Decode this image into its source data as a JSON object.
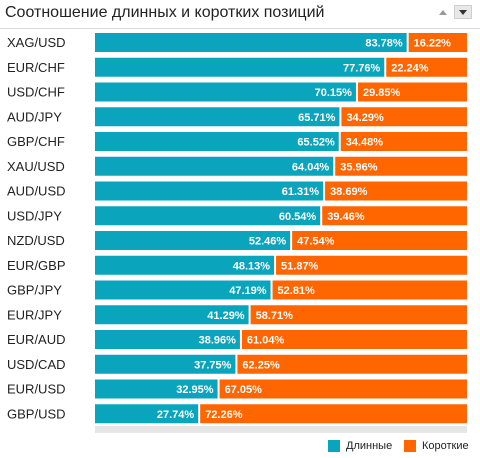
{
  "header": {
    "title": "Соотношение длинных и коротких позиций"
  },
  "colors": {
    "long": "#0aa5bd",
    "short": "#ff6600",
    "track": "#e6e6e6"
  },
  "legend": {
    "long_label": "Длинные",
    "short_label": "Короткие"
  },
  "chart_data": {
    "type": "bar",
    "orientation": "horizontal",
    "stacked": true,
    "categories": [
      "XAG/USD",
      "EUR/CHF",
      "USD/CHF",
      "AUD/JPY",
      "GBP/CHF",
      "XAU/USD",
      "AUD/USD",
      "USD/JPY",
      "NZD/USD",
      "EUR/GBP",
      "GBP/JPY",
      "EUR/JPY",
      "EUR/AUD",
      "USD/CAD",
      "EUR/USD",
      "GBP/USD"
    ],
    "series": [
      {
        "name": "Длинные",
        "values": [
          83.78,
          77.76,
          70.15,
          65.71,
          65.52,
          64.04,
          61.31,
          60.54,
          52.46,
          48.13,
          47.19,
          41.29,
          38.96,
          37.75,
          32.95,
          27.74
        ]
      },
      {
        "name": "Короткие",
        "values": [
          16.22,
          22.24,
          29.85,
          34.29,
          34.48,
          35.96,
          38.69,
          39.46,
          47.54,
          51.87,
          52.81,
          58.71,
          61.04,
          62.25,
          67.05,
          72.26
        ]
      }
    ],
    "value_labels": {
      "long": [
        "83.78%",
        "77.76%",
        "70.15%",
        "65.71%",
        "65.52%",
        "64.04%",
        "61.31%",
        "60.54%",
        "52.46%",
        "48.13%",
        "47.19%",
        "41.29%",
        "38.96%",
        "37.75%",
        "32.95%",
        "27.74%"
      ],
      "short": [
        "16.22%",
        "22.24%",
        "29.85%",
        "34.29%",
        "34.48%",
        "35.96%",
        "38.69%",
        "39.46%",
        "47.54%",
        "51.87%",
        "52.81%",
        "58.71%",
        "61.04%",
        "62.25%",
        "67.05%",
        "72.26%"
      ]
    },
    "xlim": [
      0,
      100
    ],
    "legend_position": "bottom-right"
  }
}
